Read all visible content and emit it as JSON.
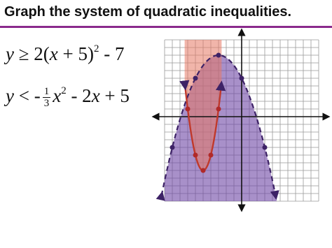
{
  "header": {
    "title": "Graph the system of quadratic inequalities."
  },
  "inequalities": [
    {
      "parts": [
        "y",
        " ≥ 2(",
        "x",
        " + 5)",
        "2",
        " - 7"
      ]
    },
    {
      "parts": [
        "y",
        " < -",
        "1",
        "3",
        "x",
        "2",
        " - 2",
        "x",
        " + 5"
      ]
    }
  ]
}
